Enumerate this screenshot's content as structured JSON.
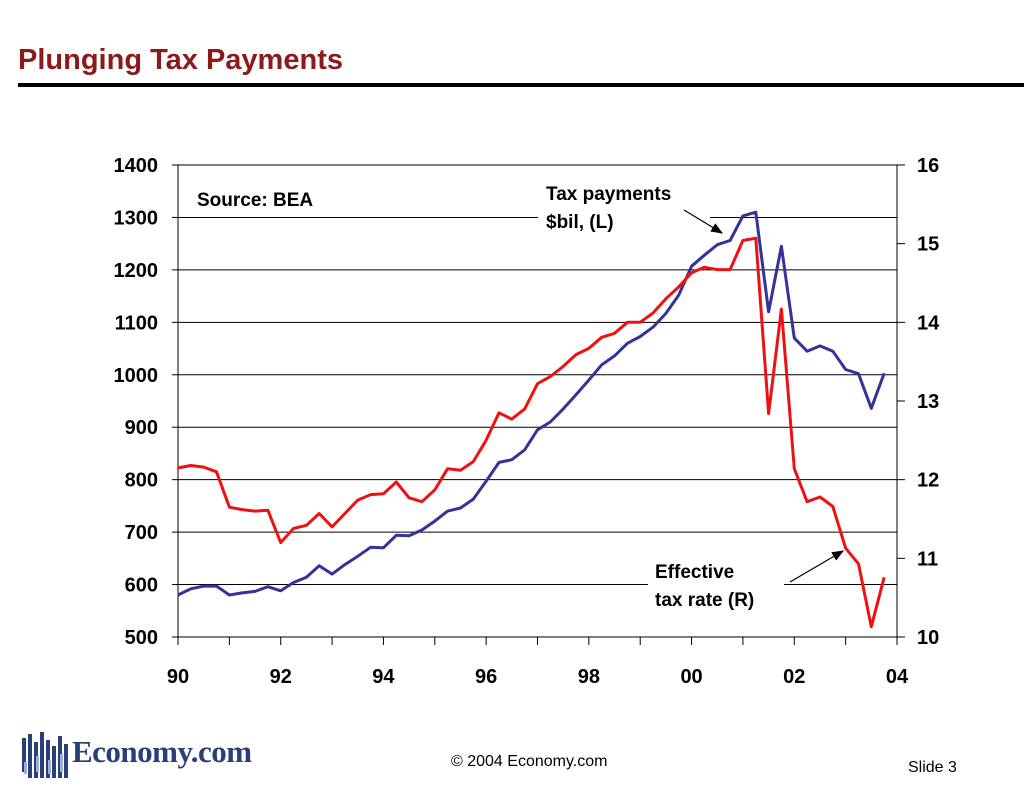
{
  "slide": {
    "title": "Plunging Tax Payments",
    "copyright": "© 2004 Economy.com",
    "slide_number": "Slide 3",
    "logo_text": "Economy.com"
  },
  "colors": {
    "title": "#8b1a1a",
    "tax_payments": "#333399",
    "effective_rate": "#ee1111",
    "logo": "#2a3f7a"
  },
  "chart_data": {
    "type": "line",
    "title": "",
    "source_note": "Source: BEA",
    "x_ticks": [
      "90",
      "92",
      "94",
      "96",
      "98",
      "00",
      "02",
      "04"
    ],
    "x_tick_values": [
      1990,
      1992,
      1994,
      1996,
      1998,
      2000,
      2002,
      2004
    ],
    "xlim": [
      1990,
      2004
    ],
    "ylim_left": [
      500,
      1400
    ],
    "ylim_right": [
      10,
      16
    ],
    "left_ticks": [
      "500",
      "600",
      "700",
      "800",
      "900",
      "1000",
      "1100",
      "1200",
      "1300",
      "1400"
    ],
    "right_ticks": [
      "10",
      "11",
      "12",
      "13",
      "14",
      "15",
      "16"
    ],
    "grid": "horizontal",
    "annotations": {
      "tax_payments": [
        "Tax payments",
        "$bil, (L)"
      ],
      "effective_rate": [
        "Effective",
        "tax rate (R)"
      ]
    },
    "series": [
      {
        "key": "tax_payments",
        "axis": "left",
        "x": [
          1990.0,
          1990.25,
          1990.5,
          1990.75,
          1991.0,
          1991.25,
          1991.5,
          1991.75,
          1992.0,
          1992.25,
          1992.5,
          1992.75,
          1993.0,
          1993.25,
          1993.5,
          1993.75,
          1994.0,
          1994.25,
          1994.5,
          1994.75,
          1995.0,
          1995.25,
          1995.5,
          1995.75,
          1996.0,
          1996.25,
          1996.5,
          1996.75,
          1997.0,
          1997.25,
          1997.5,
          1997.75,
          1998.0,
          1998.25,
          1998.5,
          1998.75,
          1999.0,
          1999.25,
          1999.5,
          1999.75,
          2000.0,
          2000.25,
          2000.5,
          2000.75,
          2001.0,
          2001.25,
          2001.5,
          2001.75,
          2002.0,
          2002.25,
          2002.5,
          2002.75,
          2003.0,
          2003.25,
          2003.5,
          2003.75
        ],
        "values": [
          580,
          592,
          597,
          597,
          580,
          584,
          587,
          596,
          588,
          604,
          614,
          636,
          620,
          638,
          654,
          671,
          670,
          694,
          693,
          704,
          721,
          740,
          746,
          763,
          797,
          833,
          838,
          857,
          895,
          910,
          935,
          962,
          990,
          1019,
          1036,
          1060,
          1073,
          1091,
          1117,
          1152,
          1207,
          1228,
          1248,
          1256,
          1303,
          1310,
          1120,
          1245,
          1070,
          1045,
          1055,
          1045,
          1010,
          1002,
          936,
          1003
        ]
      },
      {
        "key": "effective_rate",
        "axis": "right",
        "x": [
          1990.0,
          1990.25,
          1990.5,
          1990.75,
          1991.0,
          1991.25,
          1991.5,
          1991.75,
          1992.0,
          1992.25,
          1992.5,
          1992.75,
          1993.0,
          1993.25,
          1993.5,
          1993.75,
          1994.0,
          1994.25,
          1994.5,
          1994.75,
          1995.0,
          1995.25,
          1995.5,
          1995.75,
          1996.0,
          1996.25,
          1996.5,
          1996.75,
          1997.0,
          1997.25,
          1997.5,
          1997.75,
          1998.0,
          1998.25,
          1998.5,
          1998.75,
          1999.0,
          1999.25,
          1999.5,
          1999.75,
          2000.0,
          2000.25,
          2000.5,
          2000.75,
          2001.0,
          2001.25,
          2001.5,
          2001.75,
          2002.0,
          2002.25,
          2002.5,
          2002.75,
          2003.0,
          2003.25,
          2003.5,
          2003.75
        ],
        "values": [
          12.15,
          12.18,
          12.16,
          12.1,
          11.65,
          11.62,
          11.6,
          11.61,
          11.2,
          11.38,
          11.42,
          11.57,
          11.4,
          11.57,
          11.74,
          11.81,
          11.82,
          11.97,
          11.77,
          11.72,
          11.87,
          12.14,
          12.12,
          12.23,
          12.5,
          12.85,
          12.77,
          12.9,
          13.22,
          13.31,
          13.44,
          13.59,
          13.67,
          13.81,
          13.86,
          14.0,
          14.0,
          14.12,
          14.3,
          14.45,
          14.63,
          14.7,
          14.67,
          14.67,
          15.04,
          15.07,
          12.84,
          14.17,
          12.14,
          11.72,
          11.78,
          11.66,
          11.13,
          10.93,
          10.13,
          10.76
        ]
      }
    ]
  }
}
